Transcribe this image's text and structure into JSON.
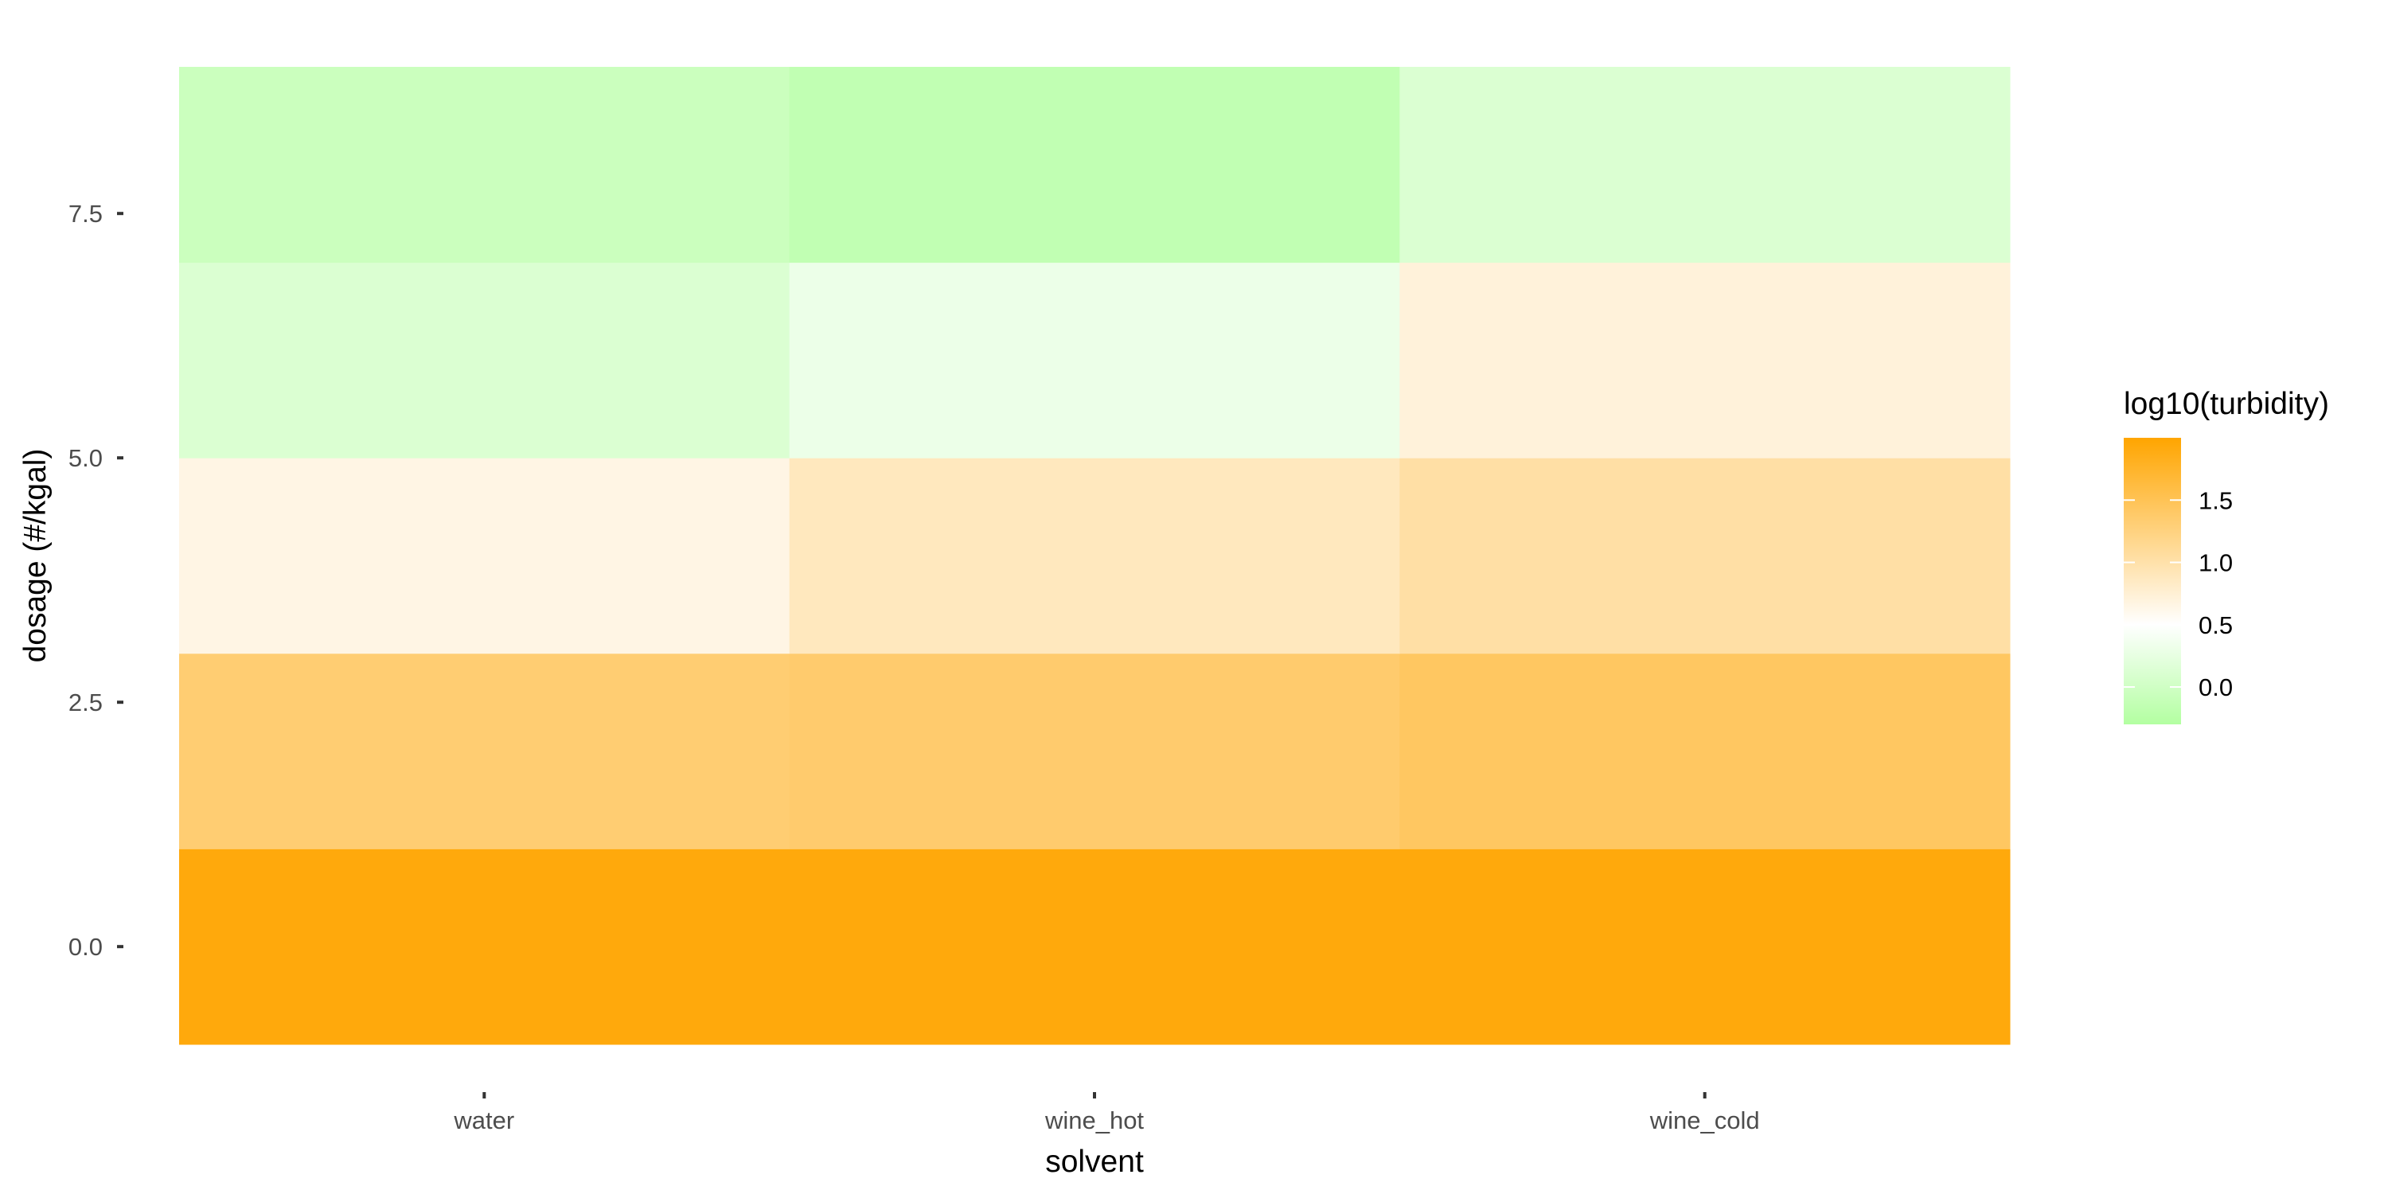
{
  "chart_data": {
    "type": "heatmap",
    "title": "",
    "xlabel": "solvent",
    "ylabel": "dosage (#/kgal)",
    "x_categories": [
      "water",
      "wine_hot",
      "wine_cold"
    ],
    "y_values": [
      0,
      2.5,
      5,
      7.5
    ],
    "y_tick_labels": [
      "0.0",
      "2.5",
      "5.0",
      "7.5"
    ],
    "ylim": [
      -1.0,
      9.0
    ],
    "cells": [
      {
        "solvent": "water",
        "dosage": 0.0,
        "value": 1.93
      },
      {
        "solvent": "wine_hot",
        "dosage": 0.0,
        "value": 1.93
      },
      {
        "solvent": "wine_cold",
        "dosage": 0.0,
        "value": 1.93
      },
      {
        "solvent": "water",
        "dosage": 2.0,
        "value": 1.33
      },
      {
        "solvent": "wine_hot",
        "dosage": 2.0,
        "value": 1.36
      },
      {
        "solvent": "wine_cold",
        "dosage": 2.0,
        "value": 1.43
      },
      {
        "solvent": "water",
        "dosage": 4.0,
        "value": 0.66
      },
      {
        "solvent": "wine_hot",
        "dosage": 4.0,
        "value": 0.88
      },
      {
        "solvent": "wine_cold",
        "dosage": 4.0,
        "value": 1.03
      },
      {
        "solvent": "water",
        "dosage": 6.0,
        "value": 0.12
      },
      {
        "solvent": "wine_hot",
        "dosage": 6.0,
        "value": 0.3
      },
      {
        "solvent": "wine_cold",
        "dosage": 6.0,
        "value": 0.72
      },
      {
        "solvent": "water",
        "dosage": 8.0,
        "value": -0.05
      },
      {
        "solvent": "wine_hot",
        "dosage": 8.0,
        "value": -0.15
      },
      {
        "solvent": "wine_cold",
        "dosage": 8.0,
        "value": 0.12
      }
    ],
    "legend": {
      "title": "log10(turbidity)",
      "placement": "right",
      "ticks": [
        0.0,
        0.5,
        1.0,
        1.5
      ],
      "tick_labels": [
        "0.0",
        "0.5",
        "1.0",
        "1.5"
      ],
      "range": [
        -0.3,
        2.0
      ],
      "midpoint": 0.5,
      "low_color": "#b3ffa1",
      "mid_color": "#ffffff",
      "high_color": "#ffa500"
    },
    "grid": false,
    "background": "#ffffff"
  }
}
